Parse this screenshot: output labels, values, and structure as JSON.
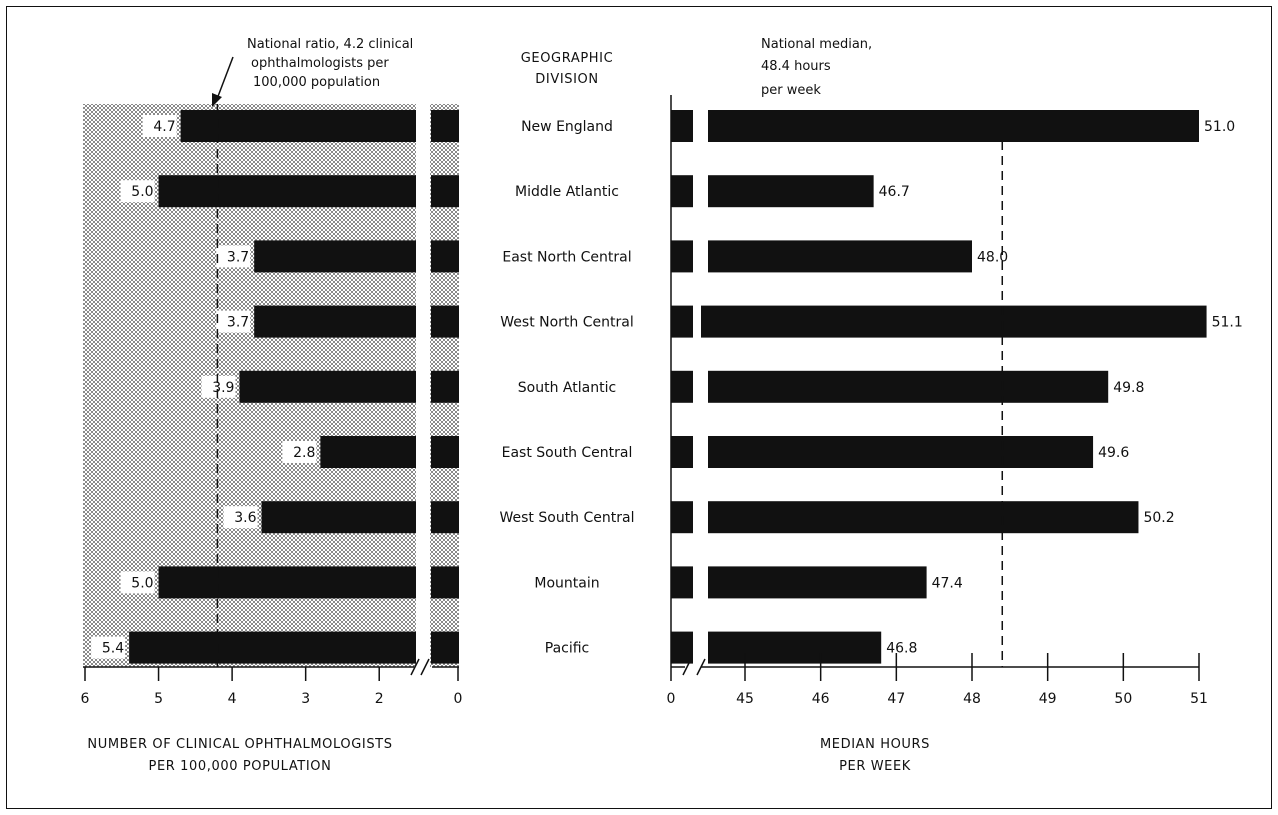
{
  "divisions_header": [
    "GEOGRAPHIC",
    "DIVISION"
  ],
  "left_note": [
    "National ratio, 4.2 clinical",
    "ophthalmologists per",
    "100,000 population"
  ],
  "right_note": [
    "National median,",
    "48.4 hours",
    "per week"
  ],
  "left_xlabel": [
    "NUMBER OF CLINICAL OPHTHALMOLOGISTS",
    "PER 100,000 POPULATION"
  ],
  "right_xlabel": [
    "MEDIAN HOURS",
    "PER WEEK"
  ],
  "left_ticks": [
    "6",
    "5",
    "4",
    "3",
    "2",
    "0"
  ],
  "right_ticks": [
    "0",
    "45",
    "46",
    "47",
    "48",
    "49",
    "50",
    "51"
  ],
  "colors": {
    "bar": "#111111",
    "text": "#111111",
    "stipple": "#9a9a9a"
  },
  "chart_data": [
    {
      "type": "bar",
      "orientation": "horizontal",
      "direction": "right-to-left",
      "categories": [
        "New England",
        "Middle Atlantic",
        "East North Central",
        "West North Central",
        "South Atlantic",
        "East South Central",
        "West South Central",
        "Mountain",
        "Pacific"
      ],
      "values": [
        4.7,
        5.0,
        3.7,
        3.7,
        3.9,
        2.8,
        3.6,
        5.0,
        5.4
      ],
      "value_labels": [
        "4.7",
        "5.0",
        "3.7",
        "3.7",
        "3.9",
        "2.8",
        "3.6",
        "5.0",
        "5.4"
      ],
      "xlim": [
        0,
        6
      ],
      "axis_break": [
        0,
        1.5
      ],
      "reference_line": {
        "value": 4.2
      }
    },
    {
      "type": "bar",
      "orientation": "horizontal",
      "categories": [
        "New England",
        "Middle Atlantic",
        "East North Central",
        "West North Central",
        "South Atlantic",
        "East South Central",
        "West South Central",
        "Mountain",
        "Pacific"
      ],
      "values": [
        51.0,
        46.7,
        48.0,
        51.1,
        49.8,
        49.6,
        50.2,
        47.4,
        46.8
      ],
      "value_labels": [
        "51.0",
        "46.7",
        "48.0",
        "51.1",
        "49.8",
        "49.6",
        "50.2",
        "47.4",
        "46.8"
      ],
      "xlim": [
        44.5,
        51
      ],
      "axis_break": [
        0,
        44.5
      ],
      "reference_line": {
        "value": 48.4
      }
    }
  ]
}
